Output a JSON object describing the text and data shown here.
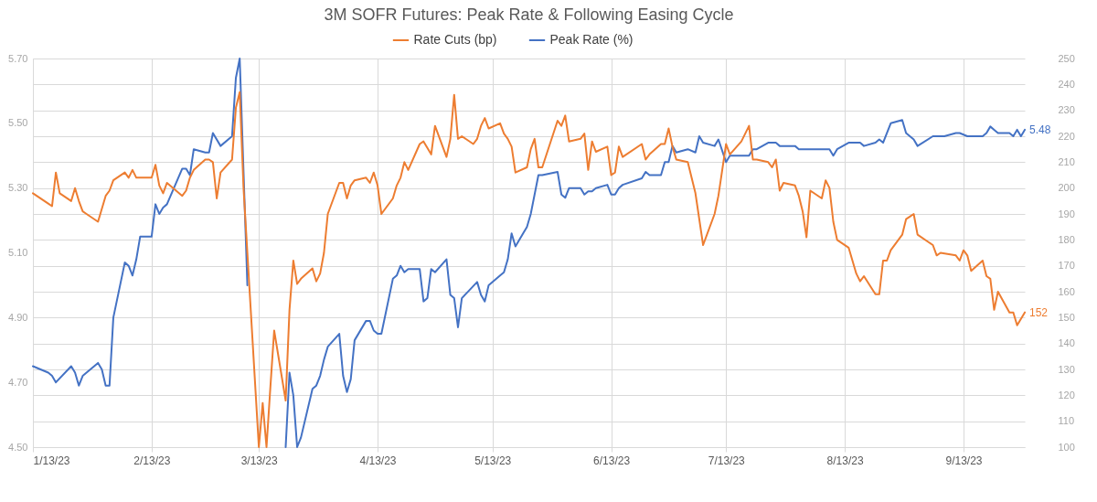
{
  "chart_data": {
    "type": "line",
    "title": "3M SOFR Futures: Peak Rate & Following Easing Cycle",
    "legend": "top",
    "grid": true,
    "xlim": [
      "2023-01-13",
      "2023-09-29"
    ],
    "xticks": [
      {
        "value": "2023-01-13",
        "label": "1/13/23"
      },
      {
        "value": "2023-02-13",
        "label": "2/13/23"
      },
      {
        "value": "2023-03-13",
        "label": "3/13/23"
      },
      {
        "value": "2023-04-13",
        "label": "4/13/23"
      },
      {
        "value": "2023-05-13",
        "label": "5/13/23"
      },
      {
        "value": "2023-06-13",
        "label": "6/13/23"
      },
      {
        "value": "2023-07-13",
        "label": "7/13/23"
      },
      {
        "value": "2023-08-13",
        "label": "8/13/23"
      },
      {
        "value": "2023-09-13",
        "label": "9/13/23"
      }
    ],
    "ylim": [
      4.5,
      5.7
    ],
    "yticks": [
      {
        "value": 4.5,
        "label": "4.50"
      },
      {
        "value": 4.7,
        "label": "4.70"
      },
      {
        "value": 4.9,
        "label": "4.90"
      },
      {
        "value": 5.1,
        "label": "5.10"
      },
      {
        "value": 5.3,
        "label": "5.30"
      },
      {
        "value": 5.5,
        "label": "5.50"
      },
      {
        "value": 5.7,
        "label": "5.70"
      }
    ],
    "y2lim": [
      100,
      250
    ],
    "y2ticks": [
      100,
      110,
      120,
      130,
      140,
      150,
      160,
      170,
      180,
      190,
      200,
      210,
      220,
      230,
      240,
      250
    ],
    "series": [
      {
        "name": "Rate Cuts (bp)",
        "color": "#ed7d31",
        "axis": "y2",
        "x": [
          "2023-01-13",
          "2023-01-17",
          "2023-01-18",
          "2023-01-19",
          "2023-01-20",
          "2023-01-23",
          "2023-01-24",
          "2023-01-25",
          "2023-01-26",
          "2023-01-27",
          "2023-01-30",
          "2023-02-01",
          "2023-02-02",
          "2023-02-03",
          "2023-02-06",
          "2023-02-07",
          "2023-02-08",
          "2023-02-09",
          "2023-02-10",
          "2023-02-13",
          "2023-02-14",
          "2023-02-15",
          "2023-02-16",
          "2023-02-17",
          "2023-02-21",
          "2023-02-22",
          "2023-02-23",
          "2023-02-24",
          "2023-02-27",
          "2023-02-28",
          "2023-03-01",
          "2023-03-02",
          "2023-03-03",
          "2023-03-06",
          "2023-03-07",
          "2023-03-08",
          "2023-03-09",
          "2023-03-10",
          "2023-03-13",
          "2023-03-14",
          "2023-03-15",
          "2023-03-16",
          "2023-03-17",
          "2023-03-20",
          "2023-03-21",
          "2023-03-22",
          "2023-03-23",
          "2023-03-24",
          "2023-03-27",
          "2023-03-28",
          "2023-03-29",
          "2023-03-30",
          "2023-03-31",
          "2023-04-03",
          "2023-04-04",
          "2023-04-05",
          "2023-04-06",
          "2023-04-07",
          "2023-04-10",
          "2023-04-11",
          "2023-04-12",
          "2023-04-13",
          "2023-04-14",
          "2023-04-17",
          "2023-04-18",
          "2023-04-19",
          "2023-04-20",
          "2023-04-21",
          "2023-04-24",
          "2023-04-25",
          "2023-04-27",
          "2023-04-28",
          "2023-05-01",
          "2023-05-02",
          "2023-05-03",
          "2023-05-04",
          "2023-05-05",
          "2023-05-08",
          "2023-05-09",
          "2023-05-10",
          "2023-05-11",
          "2023-05-12",
          "2023-05-15",
          "2023-05-16",
          "2023-05-17",
          "2023-05-18",
          "2023-05-19",
          "2023-05-22",
          "2023-05-23",
          "2023-05-24",
          "2023-05-25",
          "2023-05-26",
          "2023-05-30",
          "2023-05-31",
          "2023-06-01",
          "2023-06-02",
          "2023-06-05",
          "2023-06-06",
          "2023-06-07",
          "2023-06-08",
          "2023-06-09",
          "2023-06-12",
          "2023-06-13",
          "2023-06-14",
          "2023-06-15",
          "2023-06-16",
          "2023-06-21",
          "2023-06-22",
          "2023-06-23",
          "2023-06-26",
          "2023-06-27",
          "2023-06-28",
          "2023-06-29",
          "2023-06-30",
          "2023-07-03",
          "2023-07-05",
          "2023-07-07",
          "2023-07-10",
          "2023-07-11",
          "2023-07-12",
          "2023-07-13",
          "2023-07-14",
          "2023-07-17",
          "2023-07-18",
          "2023-07-19",
          "2023-07-20",
          "2023-07-21",
          "2023-07-24",
          "2023-07-25",
          "2023-07-26",
          "2023-07-27",
          "2023-07-28",
          "2023-07-31",
          "2023-08-01",
          "2023-08-02",
          "2023-08-03",
          "2023-08-04",
          "2023-08-07",
          "2023-08-08",
          "2023-08-09",
          "2023-08-10",
          "2023-08-11",
          "2023-08-14",
          "2023-08-15",
          "2023-08-16",
          "2023-08-17",
          "2023-08-18",
          "2023-08-21",
          "2023-08-22",
          "2023-08-23",
          "2023-08-24",
          "2023-08-25",
          "2023-08-28",
          "2023-08-29",
          "2023-08-30",
          "2023-08-31",
          "2023-09-01",
          "2023-09-05",
          "2023-09-06",
          "2023-09-07",
          "2023-09-11",
          "2023-09-12",
          "2023-09-13",
          "2023-09-14",
          "2023-09-15",
          "2023-09-18",
          "2023-09-19",
          "2023-09-20",
          "2023-09-21",
          "2023-09-22",
          "2023-09-25",
          "2023-09-26",
          "2023-09-27",
          "2023-09-29"
        ],
        "values": [
          198,
          194,
          193,
          206,
          198,
          195,
          200,
          195,
          191,
          190,
          187,
          197,
          199,
          203,
          206,
          204,
          207,
          204,
          204,
          204,
          209,
          201,
          198,
          202,
          197,
          199,
          204,
          207,
          211,
          211,
          210,
          196,
          206,
          211,
          231,
          237,
          200,
          175,
          100,
          117,
          100,
          123,
          145,
          118,
          153,
          172,
          163,
          165,
          169,
          164,
          167,
          175,
          190,
          202,
          202,
          196,
          201,
          203,
          204,
          202,
          206,
          201,
          190,
          196,
          201,
          204,
          210,
          207,
          217,
          218,
          213,
          224,
          212,
          219,
          236,
          219,
          220,
          217,
          219,
          224,
          227,
          223,
          225,
          221,
          219,
          216,
          206,
          208,
          215,
          219,
          208,
          208,
          226,
          224,
          228,
          218,
          219,
          221,
          207,
          218,
          214,
          216,
          205,
          206,
          216,
          212,
          217,
          211,
          213,
          217,
          217,
          223,
          216,
          211,
          210,
          198,
          178,
          190,
          197,
          207,
          217,
          213,
          218,
          221,
          224,
          211,
          211,
          210,
          208,
          211,
          199,
          202,
          201,
          197,
          191,
          181,
          199,
          196,
          203,
          200,
          187,
          180,
          177,
          172,
          167,
          164,
          166,
          159,
          159,
          172,
          172,
          176,
          182,
          188,
          189,
          190,
          182,
          178,
          174,
          175,
          174,
          172,
          176,
          174,
          168,
          172,
          166,
          165,
          153,
          160,
          152,
          152,
          147,
          152
        ],
        "value_labels": [
          null,
          null,
          null,
          null,
          null,
          null,
          null,
          null,
          null,
          null,
          null,
          null,
          null,
          null,
          null,
          null,
          null,
          null,
          null,
          null,
          null,
          null,
          null,
          null,
          null,
          null,
          null,
          null,
          null,
          null,
          null,
          null,
          null,
          null,
          null,
          null,
          null,
          null,
          null,
          null,
          null,
          null,
          null,
          null,
          null,
          null,
          null,
          null,
          null,
          null,
          null,
          null,
          null,
          null,
          null,
          null,
          null,
          null,
          null,
          null,
          null,
          null,
          null,
          null,
          null,
          null,
          null,
          null,
          null,
          null,
          null,
          null,
          null,
          null,
          null,
          null,
          null,
          null,
          null,
          null,
          null,
          null,
          null,
          null,
          null,
          null,
          null,
          null,
          null,
          null,
          null,
          null,
          null,
          null,
          null,
          null,
          null,
          null,
          null,
          null,
          null,
          null,
          null,
          null,
          null,
          null,
          null,
          null,
          null,
          null,
          null,
          null,
          null,
          null,
          null,
          null,
          null,
          null,
          null,
          null,
          null,
          null,
          null,
          null,
          null,
          null,
          null,
          null,
          null,
          null,
          null,
          null,
          null,
          null,
          null,
          null,
          null,
          null,
          null,
          null,
          null,
          null,
          null,
          null,
          null,
          null,
          null,
          null,
          null,
          null,
          null,
          null,
          null,
          null,
          null,
          null,
          null,
          null,
          null,
          null,
          null,
          null,
          null,
          null,
          null,
          null,
          null,
          null,
          null,
          null,
          null,
          null,
          null,
          "152"
        ]
      },
      {
        "name": "Peak Rate (%)",
        "color": "#4472c4",
        "axis": "y",
        "x": [
          "2023-01-13",
          "2023-01-17",
          "2023-01-18",
          "2023-01-19",
          "2023-01-23",
          "2023-01-24",
          "2023-01-25",
          "2023-01-26",
          "2023-01-27",
          "2023-01-30",
          "2023-01-31",
          "2023-02-01",
          "2023-02-02",
          "2023-02-03",
          "2023-02-06",
          "2023-02-07",
          "2023-02-08",
          "2023-02-09",
          "2023-02-10",
          "2023-02-13",
          "2023-02-14",
          "2023-02-15",
          "2023-02-16",
          "2023-02-17",
          "2023-02-21",
          "2023-02-22",
          "2023-02-23",
          "2023-02-24",
          "2023-02-27",
          "2023-02-28",
          "2023-03-01",
          "2023-03-03",
          "2023-03-06",
          "2023-03-07",
          "2023-03-08",
          "2023-03-09",
          "2023-03-10",
          "2023-03-13",
          "2023-03-16",
          "2023-03-20",
          "2023-03-21",
          "2023-03-22",
          "2023-03-23",
          "2023-03-24",
          "2023-03-27",
          "2023-03-28",
          "2023-03-29",
          "2023-03-30",
          "2023-03-31",
          "2023-04-03",
          "2023-04-04",
          "2023-04-05",
          "2023-04-06",
          "2023-04-07",
          "2023-04-10",
          "2023-04-11",
          "2023-04-12",
          "2023-04-13",
          "2023-04-14",
          "2023-04-17",
          "2023-04-18",
          "2023-04-19",
          "2023-04-20",
          "2023-04-21",
          "2023-04-24",
          "2023-04-25",
          "2023-04-26",
          "2023-04-27",
          "2023-04-28",
          "2023-05-01",
          "2023-05-02",
          "2023-05-03",
          "2023-05-04",
          "2023-05-05",
          "2023-05-09",
          "2023-05-10",
          "2023-05-11",
          "2023-05-12",
          "2023-05-15",
          "2023-05-16",
          "2023-05-17",
          "2023-05-18",
          "2023-05-19",
          "2023-05-22",
          "2023-05-23",
          "2023-05-25",
          "2023-05-26",
          "2023-05-30",
          "2023-05-31",
          "2023-06-01",
          "2023-06-02",
          "2023-06-05",
          "2023-06-06",
          "2023-06-07",
          "2023-06-08",
          "2023-06-09",
          "2023-06-12",
          "2023-06-13",
          "2023-06-14",
          "2023-06-15",
          "2023-06-16",
          "2023-06-21",
          "2023-06-22",
          "2023-06-23",
          "2023-06-26",
          "2023-06-27",
          "2023-06-28",
          "2023-06-29",
          "2023-06-30",
          "2023-07-03",
          "2023-07-05",
          "2023-07-06",
          "2023-07-07",
          "2023-07-10",
          "2023-07-11",
          "2023-07-13",
          "2023-07-14",
          "2023-07-17",
          "2023-07-18",
          "2023-07-19",
          "2023-07-20",
          "2023-07-21",
          "2023-07-24",
          "2023-07-25",
          "2023-07-26",
          "2023-07-27",
          "2023-07-28",
          "2023-07-31",
          "2023-08-01",
          "2023-08-02",
          "2023-08-03",
          "2023-08-04",
          "2023-08-07",
          "2023-08-08",
          "2023-08-09",
          "2023-08-10",
          "2023-08-11",
          "2023-08-14",
          "2023-08-15",
          "2023-08-16",
          "2023-08-17",
          "2023-08-18",
          "2023-08-21",
          "2023-08-22",
          "2023-08-23",
          "2023-08-25",
          "2023-08-28",
          "2023-08-29",
          "2023-08-30",
          "2023-08-31",
          "2023-09-01",
          "2023-09-05",
          "2023-09-06",
          "2023-09-07",
          "2023-09-08",
          "2023-09-11",
          "2023-09-12",
          "2023-09-14",
          "2023-09-15",
          "2023-09-18",
          "2023-09-19",
          "2023-09-20",
          "2023-09-21",
          "2023-09-22",
          "2023-09-25",
          "2023-09-26",
          "2023-09-27",
          "2023-09-28",
          "2023-09-29"
        ],
        "values": [
          4.75,
          4.73,
          4.72,
          4.7,
          4.75,
          4.73,
          4.69,
          4.72,
          4.73,
          4.76,
          4.74,
          4.69,
          4.69,
          4.9,
          5.07,
          5.06,
          5.03,
          5.08,
          5.15,
          5.15,
          5.25,
          5.22,
          5.24,
          5.25,
          5.36,
          5.36,
          5.34,
          5.42,
          5.41,
          5.41,
          5.47,
          5.43,
          5.46,
          5.64,
          5.7,
          5.35,
          5.0,
          null,
          null,
          4.5,
          4.73,
          4.66,
          4.5,
          4.53,
          4.68,
          4.69,
          4.72,
          4.77,
          4.81,
          4.85,
          4.72,
          4.67,
          4.71,
          4.83,
          4.89,
          4.89,
          4.86,
          4.85,
          4.85,
          5.02,
          5.03,
          5.06,
          5.04,
          5.05,
          5.05,
          4.95,
          4.96,
          5.05,
          5.04,
          5.08,
          4.97,
          4.96,
          4.87,
          4.96,
          5.01,
          4.97,
          4.95,
          5.0,
          5.03,
          5.04,
          5.08,
          5.16,
          5.12,
          5.18,
          5.22,
          5.34,
          5.34,
          5.35,
          5.28,
          5.27,
          5.3,
          5.3,
          5.28,
          5.29,
          5.29,
          5.3,
          5.31,
          5.28,
          5.28,
          5.3,
          5.31,
          5.33,
          5.35,
          5.34,
          5.34,
          5.38,
          5.38,
          5.43,
          5.41,
          5.42,
          5.41,
          5.46,
          5.44,
          5.43,
          5.45,
          5.38,
          5.4,
          5.4,
          5.4,
          5.4,
          5.42,
          5.42,
          5.44,
          5.44,
          5.44,
          5.43,
          5.43,
          5.43,
          5.42,
          5.42,
          5.42,
          5.42,
          5.42,
          5.42,
          5.42,
          5.4,
          5.42,
          5.44,
          5.44,
          5.44,
          5.44,
          5.43,
          5.44,
          5.45,
          5.44,
          5.5,
          5.51,
          5.47,
          5.46,
          5.45,
          5.43,
          5.46,
          5.46,
          5.46,
          5.46,
          5.47,
          5.47,
          5.46,
          5.46,
          5.46,
          5.47,
          5.49,
          5.48,
          5.47,
          5.47,
          5.46,
          5.48,
          5.46,
          5.48
        ],
        "value_labels": [
          null,
          null,
          null,
          null,
          null,
          null,
          null,
          null,
          null,
          null,
          null,
          null,
          null,
          null,
          null,
          null,
          null,
          null,
          null,
          null,
          null,
          null,
          null,
          null,
          null,
          null,
          null,
          null,
          null,
          null,
          null,
          null,
          null,
          null,
          null,
          null,
          null,
          null,
          null,
          null,
          null,
          null,
          null,
          null,
          null,
          null,
          null,
          null,
          null,
          null,
          null,
          null,
          null,
          null,
          null,
          null,
          null,
          null,
          null,
          null,
          null,
          null,
          null,
          null,
          null,
          null,
          null,
          null,
          null,
          null,
          null,
          null,
          null,
          null,
          null,
          null,
          null,
          null,
          null,
          null,
          null,
          null,
          null,
          null,
          null,
          null,
          null,
          null,
          null,
          null,
          null,
          null,
          null,
          null,
          null,
          null,
          null,
          null,
          null,
          null,
          null,
          null,
          null,
          null,
          null,
          null,
          null,
          null,
          null,
          null,
          null,
          null,
          null,
          null,
          null,
          null,
          null,
          null,
          null,
          null,
          null,
          null,
          null,
          null,
          null,
          null,
          null,
          null,
          null,
          null,
          null,
          null,
          null,
          null,
          null,
          null,
          null,
          null,
          null,
          null,
          null,
          null,
          null,
          null,
          null,
          null,
          null,
          null,
          null,
          null,
          null,
          null,
          null,
          null,
          null,
          null,
          null,
          null,
          null,
          null,
          null,
          null,
          null,
          null,
          null,
          null,
          null,
          null,
          "5.48"
        ]
      }
    ]
  }
}
